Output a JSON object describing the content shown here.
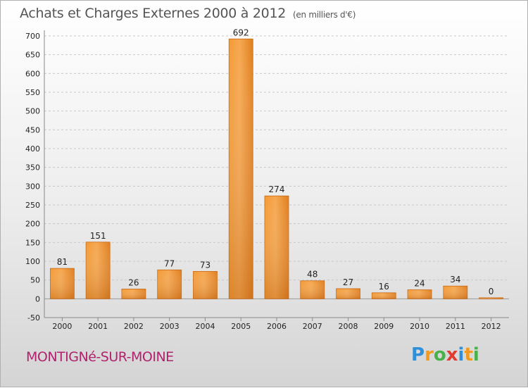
{
  "chart_data": {
    "type": "bar",
    "title": "Achats et Charges Externes 2000 à 2012",
    "unit": "(en milliers d'€)",
    "categories": [
      "2000",
      "2001",
      "2002",
      "2003",
      "2004",
      "2005",
      "2006",
      "2007",
      "2008",
      "2009",
      "2010",
      "2011",
      "2012"
    ],
    "values": [
      81,
      151,
      26,
      77,
      73,
      692,
      274,
      48,
      27,
      16,
      24,
      34,
      0
    ],
    "data_labels": [
      "81",
      "151",
      "26",
      "77",
      "73",
      "692",
      "274",
      "48",
      "27",
      "16",
      "24",
      "34",
      "0"
    ],
    "xlabel": "",
    "ylabel": "",
    "ylim": [
      -50,
      700
    ],
    "yticks": [
      "-50",
      "0",
      "50",
      "100",
      "150",
      "200",
      "250",
      "300",
      "350",
      "400",
      "450",
      "500",
      "550",
      "600",
      "650",
      "700"
    ],
    "grid": true,
    "bar_color": "#f0922e",
    "bar_color_dark": "#d06c16"
  },
  "footer": {
    "commune": "MONTIGNé-SUR-MOINE",
    "commune_color": "#b0226d"
  },
  "brand": {
    "letters": [
      "P",
      "r",
      "o",
      "x",
      "i",
      "t",
      "i"
    ],
    "colors": [
      "#2f8fd8",
      "#f39a1e",
      "#47b24a",
      "#e23b2f",
      "#2f8fd8",
      "#f39a1e",
      "#47b24a"
    ]
  }
}
